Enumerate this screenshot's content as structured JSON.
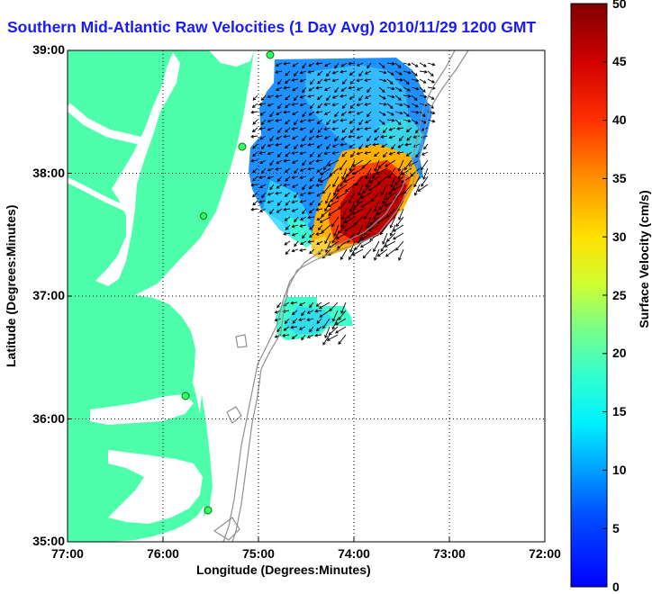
{
  "title": "Southern Mid-Atlantic Raw Velocities (1 Day Avg) 2010/11/29 1200 GMT",
  "xlabel": "Longitude (Degrees:Minutes)",
  "ylabel": "Latitude (Degrees:Minutes)",
  "x_ticks": [
    "77:00",
    "76:00",
    "75:00",
    "74:00",
    "73:00",
    "72:00"
  ],
  "y_ticks": [
    "39:00",
    "38:00",
    "37:00",
    "36:00",
    "35:00"
  ],
  "colorbar": {
    "label": "Surface Velocity (cm/s)",
    "ticks": [
      "0",
      "5",
      "10",
      "15",
      "20",
      "25",
      "30",
      "35",
      "40",
      "45",
      "50"
    ],
    "range": [
      0,
      50
    ]
  },
  "colors": {
    "land": "#4dffaa",
    "title": "#1a1aff",
    "bathymetry": "#909090",
    "grid": "#000000"
  },
  "map": {
    "lon_range": [
      -77,
      -72
    ],
    "lat_range": [
      35,
      39
    ],
    "grid": "dotted",
    "radar_sites": 5
  }
}
